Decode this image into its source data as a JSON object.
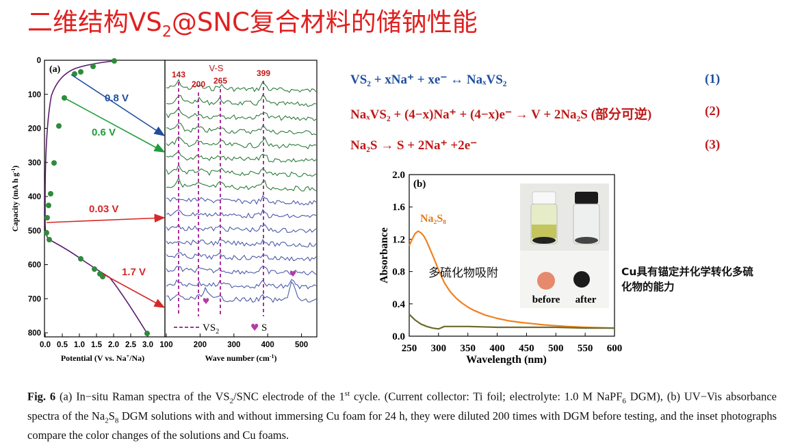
{
  "title": {
    "pre": "二维结构VS",
    "sub": "2",
    "post": "@SNC复合材料的储钠性能"
  },
  "panel_a": {
    "label": "(a)",
    "ylabel": "Capacity (mA h g",
    "ylabel_sup": "-1",
    "ylabel_end": ")",
    "xlabel_left": "Potential (V vs. Na",
    "xlabel_left_sup": "+",
    "xlabel_left_end": "/Na)",
    "xlabel_right": "Wave number (cm",
    "xlabel_right_sup": "-1",
    "xlabel_right_end": ")",
    "y_ticks": [
      "0",
      "100",
      "200",
      "300",
      "400",
      "500",
      "600",
      "700",
      "800"
    ],
    "x_ticks_left": [
      "0.0",
      "0.5",
      "1.0",
      "1.5",
      "2.0",
      "2.5",
      "3.0"
    ],
    "x_ticks_right": [
      "100",
      "200",
      "300",
      "400",
      "500"
    ],
    "arrow_labels": [
      "0.8 V",
      "0.6 V",
      "0.03 V",
      "1.7 V"
    ],
    "peaks": [
      "143",
      "200",
      "265",
      "399"
    ],
    "vs_label": "V-S",
    "legend_vs2": "VS",
    "legend_vs2_sub": "2",
    "legend_s": "S",
    "colors": {
      "curve": "#5a1a6e",
      "point": "#2e8b3a",
      "blue_arrow": "#1f4e9f",
      "green_arrow": "#1e9e3a",
      "red_arrow": "#d62828",
      "green_trace": "#2b7a3a",
      "blue_trace": "#4a5aa8",
      "dash": "#a8309a"
    }
  },
  "equations": {
    "eq1": "VS₂ + xNa⁺ + xe⁻ ↔ NaₓVS₂",
    "eq1_num": "(1)",
    "eq2": "NaₓVS₂ + (4−x)Na⁺ + (4−x)e⁻ → V + 2Na₂S (部分可逆)",
    "eq2_num": "(2)",
    "eq3": "Na₂S → S + 2Na⁺ +2e⁻",
    "eq3_num": "(3)"
  },
  "panel_b": {
    "label": "(b)",
    "series_label": "Na₂S₈",
    "adsorb_label": "多硫化物吸附",
    "before": "before",
    "after": "after"
  },
  "chart_data": {
    "type": "line",
    "xlabel": "Wavelength (nm)",
    "ylabel": "Absorbance",
    "xlim": [
      250,
      600
    ],
    "ylim": [
      0.0,
      2.0
    ],
    "x_ticks": [
      "250",
      "300",
      "350",
      "400",
      "450",
      "500",
      "550",
      "600"
    ],
    "y_ticks": [
      "0.0",
      "0.4",
      "0.8",
      "1.2",
      "1.6",
      "2.0"
    ],
    "series": [
      {
        "name": "Na₂S₈",
        "color": "#f0801e",
        "x": [
          250,
          255,
          260,
          265,
          270,
          275,
          280,
          290,
          300,
          310,
          320,
          330,
          340,
          350,
          360,
          370,
          380,
          400,
          420,
          440,
          460,
          480,
          500,
          520,
          550,
          600
        ],
        "y": [
          1.12,
          1.2,
          1.27,
          1.3,
          1.28,
          1.24,
          1.17,
          1.0,
          0.82,
          0.66,
          0.55,
          0.47,
          0.41,
          0.36,
          0.32,
          0.29,
          0.26,
          0.22,
          0.19,
          0.17,
          0.155,
          0.14,
          0.13,
          0.12,
          0.11,
          0.1
        ]
      },
      {
        "color": "#6b6b2a",
        "x": [
          250,
          260,
          270,
          280,
          290,
          300,
          310,
          350,
          400,
          450,
          500,
          550,
          600
        ],
        "y": [
          0.27,
          0.2,
          0.15,
          0.12,
          0.1,
          0.09,
          0.12,
          0.12,
          0.11,
          0.11,
          0.11,
          0.1,
          0.1
        ]
      }
    ]
  },
  "cu_note": "Cu具有锚定并化学转化多硫化物的能力",
  "caption": {
    "fig": "Fig. 6",
    "p1": " (a) In−situ Raman spectra of the VS",
    "p1_sub": "2",
    "p2": "/SNC electrode of the 1",
    "p2_sup": "st",
    "p3": " cycle. (Current collector: Ti foil; electrolyte: 1.0 M NaPF",
    "p3_sub": "6",
    "p4": " DGM), (b) UV−Vis absorbance spectra of the Na",
    "p4_sub1": "2",
    "p4b": "S",
    "p4_sub2": "8",
    "p5": " DGM solutions with and without immersing Cu foam for 24 h, they were diluted 200 times with DGM before testing, and the inset photographs compare the color changes of the solutions and Cu foams."
  }
}
